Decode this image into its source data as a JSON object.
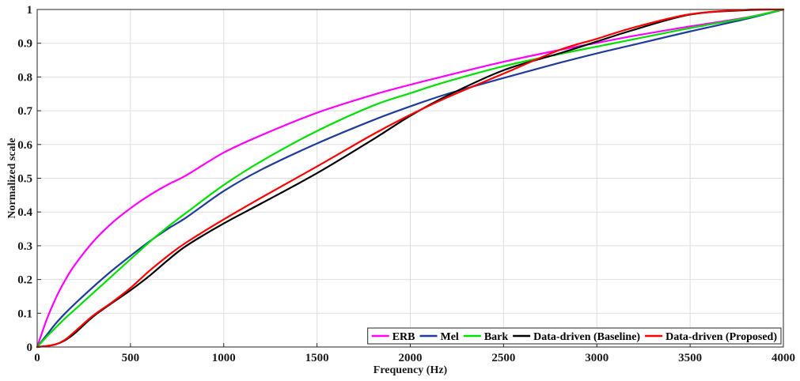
{
  "chart_data": {
    "type": "line",
    "xlabel": "Frequency (Hz)",
    "ylabel": "Normalized scale",
    "xlim": [
      0,
      4000
    ],
    "ylim": [
      0,
      1
    ],
    "xticks": [
      "0",
      "500",
      "1000",
      "1500",
      "2000",
      "2500",
      "3000",
      "3500",
      "4000"
    ],
    "yticks": [
      "0",
      "0.1",
      "0.2",
      "0.3",
      "0.4",
      "0.5",
      "0.6",
      "0.7",
      "0.8",
      "0.9",
      "1"
    ],
    "grid": true,
    "legend_position": "bottom-right",
    "x": [
      0,
      50,
      100,
      150,
      200,
      300,
      400,
      500,
      600,
      700,
      800,
      1000,
      1200,
      1500,
      1800,
      2000,
      2200,
      2500,
      2800,
      3000,
      3200,
      3500,
      3800,
      4000
    ],
    "series": [
      {
        "name": "ERB",
        "color": "#ff00ff",
        "values": [
          0,
          0.08,
          0.145,
          0.198,
          0.242,
          0.312,
          0.367,
          0.411,
          0.449,
          0.481,
          0.509,
          0.576,
          0.627,
          0.694,
          0.747,
          0.777,
          0.805,
          0.845,
          0.88,
          0.901,
          0.922,
          0.95,
          0.976,
          1.0
        ]
      },
      {
        "name": "Mel",
        "color": "#1f3c9a",
        "values": [
          0,
          0.035,
          0.07,
          0.1,
          0.127,
          0.178,
          0.226,
          0.27,
          0.312,
          0.35,
          0.384,
          0.462,
          0.525,
          0.603,
          0.672,
          0.713,
          0.75,
          0.797,
          0.842,
          0.87,
          0.896,
          0.935,
          0.972,
          1.0
        ]
      },
      {
        "name": "Bark",
        "color": "#00e000",
        "values": [
          0,
          0.03,
          0.058,
          0.085,
          0.11,
          0.16,
          0.21,
          0.26,
          0.31,
          0.356,
          0.398,
          0.48,
          0.55,
          0.64,
          0.715,
          0.752,
          0.787,
          0.832,
          0.868,
          0.89,
          0.912,
          0.945,
          0.975,
          1.0
        ]
      },
      {
        "name": "Data-driven (Baseline)",
        "color": "#000000",
        "values": [
          0,
          0.003,
          0.008,
          0.02,
          0.04,
          0.09,
          0.13,
          0.168,
          0.21,
          0.257,
          0.3,
          0.366,
          0.425,
          0.515,
          0.615,
          0.685,
          0.745,
          0.82,
          0.87,
          0.905,
          0.94,
          0.985,
          0.998,
          1.0
        ]
      },
      {
        "name": "Data-driven (Proposed)",
        "color": "#ff0000",
        "values": [
          0,
          0.003,
          0.008,
          0.022,
          0.045,
          0.093,
          0.132,
          0.175,
          0.225,
          0.27,
          0.31,
          0.378,
          0.442,
          0.535,
          0.63,
          0.688,
          0.74,
          0.81,
          0.88,
          0.913,
          0.947,
          0.986,
          0.999,
          1.0
        ]
      }
    ]
  }
}
